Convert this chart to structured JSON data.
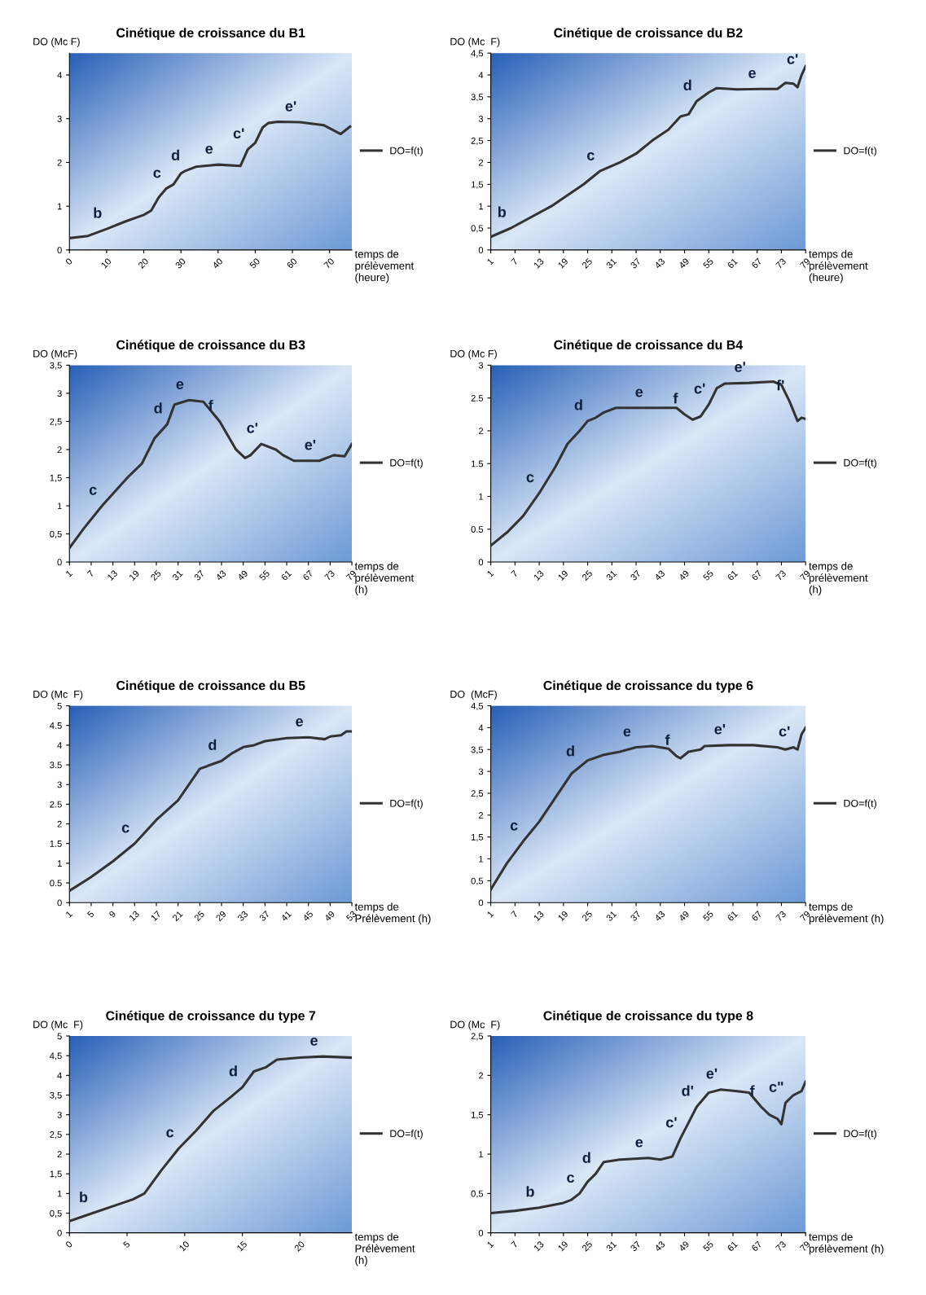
{
  "chart_data": [
    {
      "type": "line",
      "title": "Cinétique de croissance du B1",
      "ylabel": "DO (Mc F)",
      "xlabel": "temps de\nprélèvement\n(heure)",
      "legend": "right",
      "x": [
        0,
        5,
        10,
        15,
        20,
        22,
        24,
        26,
        28,
        30,
        31,
        34,
        40,
        46,
        48,
        50,
        52,
        53.5,
        56,
        62,
        68.5,
        73,
        75.5
      ],
      "series": [
        {
          "name": "DO=f(t)",
          "color": "#333333",
          "values": [
            0.27,
            0.32,
            0.48,
            0.65,
            0.8,
            0.9,
            1.2,
            1.4,
            1.5,
            1.75,
            1.8,
            1.9,
            1.95,
            1.92,
            2.3,
            2.45,
            2.8,
            2.9,
            2.93,
            2.92,
            2.85,
            2.65,
            2.82
          ]
        }
      ],
      "xlim": [
        0,
        76
      ],
      "ylim": [
        0,
        4.5
      ],
      "xticks": [
        0,
        10,
        20,
        30,
        40,
        50,
        60,
        70
      ],
      "yticks": [
        0,
        1,
        2,
        3,
        4
      ],
      "annotations": [
        {
          "text": "b",
          "x": 10,
          "y": 0.48
        },
        {
          "text": "c",
          "x": 26,
          "y": 1.4
        },
        {
          "text": "d",
          "x": 31,
          "y": 1.8
        },
        {
          "text": "e",
          "x": 40,
          "y": 1.95
        },
        {
          "text": "c'",
          "x": 48,
          "y": 2.3
        },
        {
          "text": "e'",
          "x": 62,
          "y": 2.92
        }
      ]
    },
    {
      "type": "line",
      "title": "Cinétique de croissance du B2",
      "ylabel": "DO (Mc  F)",
      "xlabel": "temps de\nprélèvement\n(heure)",
      "legend": "right",
      "x": [
        1,
        6,
        16,
        24,
        28,
        33,
        37,
        41,
        45,
        48,
        50,
        52,
        55,
        57,
        62,
        68,
        72,
        74,
        76,
        77,
        78,
        79
      ],
      "series": [
        {
          "name": "DO=f(t)",
          "color": "#333333",
          "values": [
            0.3,
            0.5,
            1.0,
            1.5,
            1.8,
            2.0,
            2.2,
            2.5,
            2.75,
            3.05,
            3.1,
            3.4,
            3.6,
            3.7,
            3.67,
            3.68,
            3.68,
            3.82,
            3.8,
            3.72,
            4.0,
            4.2
          ]
        }
      ],
      "xlim": [
        1,
        79
      ],
      "ylim": [
        0,
        4.5
      ],
      "xticks": [
        1,
        7,
        13,
        19,
        25,
        31,
        37,
        43,
        49,
        55,
        61,
        67,
        73,
        79
      ],
      "yticks": [
        0,
        {
          "value": 0.5,
          "label": "0,5"
        },
        1,
        {
          "value": 1.5,
          "label": "1,5"
        },
        2,
        {
          "value": 2.5,
          "label": "2,5"
        },
        3,
        {
          "value": 3.5,
          "label": "3,5"
        },
        4,
        {
          "value": 4.5,
          "label": "4,5"
        }
      ],
      "annotations": [
        {
          "text": "b",
          "x": 6,
          "y": 0.5
        },
        {
          "text": "c",
          "x": 28,
          "y": 1.8
        },
        {
          "text": "d",
          "x": 52,
          "y": 3.4
        },
        {
          "text": "e",
          "x": 68,
          "y": 3.68
        },
        {
          "text": "c'",
          "x": 78,
          "y": 4.0
        }
      ]
    },
    {
      "type": "line",
      "title": "Cinétique de croissance du B3",
      "ylabel": "DO (McF)",
      "xlabel": "temps de\nprélèvement\n(h)",
      "legend": "right",
      "x": [
        1,
        5,
        10,
        17,
        21,
        24.5,
        28,
        30,
        34,
        38,
        42.5,
        47,
        49.5,
        51,
        54,
        58,
        60,
        63,
        70,
        74,
        77,
        79
      ],
      "series": [
        {
          "name": "DO=f(t)",
          "color": "#333333",
          "values": [
            0.25,
            0.6,
            1.0,
            1.5,
            1.75,
            2.2,
            2.45,
            2.8,
            2.88,
            2.85,
            2.5,
            2.0,
            1.85,
            1.9,
            2.1,
            2.0,
            1.9,
            1.8,
            1.8,
            1.9,
            1.88,
            2.1
          ]
        }
      ],
      "xlim": [
        1,
        79
      ],
      "ylim": [
        0,
        3.5
      ],
      "xticks": [
        1,
        7,
        13,
        19,
        25,
        31,
        37,
        43,
        49,
        55,
        61,
        67,
        73,
        79
      ],
      "yticks": [
        0,
        {
          "value": 0.5,
          "label": "0,5"
        },
        1,
        {
          "value": 1.5,
          "label": "1,5"
        },
        2,
        {
          "value": 2.5,
          "label": "2,5"
        },
        3,
        {
          "value": 3.5,
          "label": "3,5"
        }
      ],
      "annotations": [
        {
          "text": "c",
          "x": 10,
          "y": 1.0
        },
        {
          "text": "d",
          "x": 28,
          "y": 2.45
        },
        {
          "text": "e",
          "x": 34,
          "y": 2.88
        },
        {
          "text": "f",
          "x": 42.5,
          "y": 2.5
        },
        {
          "text": "c'",
          "x": 54,
          "y": 2.1
        },
        {
          "text": "e'",
          "x": 70,
          "y": 1.8
        }
      ]
    },
    {
      "type": "line",
      "title": "Cinétique de croissance du B4",
      "ylabel": "DO (Mc F)",
      "xlabel": "temps de\nprélèvement\n(h)",
      "legend": "right",
      "x": [
        1,
        5,
        9,
        13,
        17,
        20,
        23,
        25,
        27,
        29,
        32,
        40,
        47,
        49,
        51,
        53,
        55,
        57,
        59,
        65,
        71,
        73,
        75,
        77,
        78,
        79
      ],
      "series": [
        {
          "name": "DO=f(t)",
          "color": "#333333",
          "values": [
            0.25,
            0.45,
            0.7,
            1.05,
            1.45,
            1.8,
            2.0,
            2.15,
            2.2,
            2.28,
            2.35,
            2.35,
            2.35,
            2.25,
            2.17,
            2.22,
            2.4,
            2.65,
            2.72,
            2.73,
            2.75,
            2.7,
            2.45,
            2.15,
            2.2,
            2.18
          ]
        }
      ],
      "xlim": [
        1,
        79
      ],
      "ylim": [
        0,
        3
      ],
      "xticks": [
        1,
        7,
        13,
        19,
        25,
        31,
        37,
        43,
        49,
        55,
        61,
        67,
        73,
        79
      ],
      "yticks": [
        0,
        0.5,
        1,
        1.5,
        2,
        2.5,
        3
      ],
      "annotations": [
        {
          "text": "c",
          "x": 13,
          "y": 1.05
        },
        {
          "text": "d",
          "x": 25,
          "y": 2.15
        },
        {
          "text": "e",
          "x": 40,
          "y": 2.35
        },
        {
          "text": "f",
          "x": 49,
          "y": 2.25
        },
        {
          "text": "c'",
          "x": 55,
          "y": 2.4
        },
        {
          "text": "e'",
          "x": 65,
          "y": 2.73
        },
        {
          "text": "f'",
          "x": 75,
          "y": 2.45
        }
      ]
    },
    {
      "type": "line",
      "title": "Cinétique de croissance du B5",
      "ylabel": "DO (Mc  F)",
      "xlabel": "temps de\nPrélèvement (h)",
      "legend": "right",
      "x": [
        1,
        5,
        9,
        13,
        17,
        21,
        25,
        29,
        31,
        33,
        35,
        37,
        41,
        45,
        48,
        49,
        51,
        52,
        53
      ],
      "series": [
        {
          "name": "DO=f(t)",
          "color": "#333333",
          "values": [
            0.3,
            0.65,
            1.05,
            1.5,
            2.1,
            2.6,
            3.4,
            3.6,
            3.8,
            3.95,
            4.0,
            4.1,
            4.18,
            4.2,
            4.15,
            4.22,
            4.25,
            4.35,
            4.35
          ]
        }
      ],
      "xlim": [
        1,
        53
      ],
      "ylim": [
        0,
        5
      ],
      "xticks": [
        1,
        5,
        9,
        13,
        17,
        21,
        25,
        29,
        33,
        37,
        41,
        45,
        49,
        53
      ],
      "yticks": [
        0,
        0.5,
        1,
        1.5,
        2,
        2.5,
        3,
        3.5,
        4,
        4.5,
        5
      ],
      "annotations": [
        {
          "text": "c",
          "x": 13,
          "y": 1.5
        },
        {
          "text": "d",
          "x": 29,
          "y": 3.6
        },
        {
          "text": "e",
          "x": 45,
          "y": 4.2
        }
      ]
    },
    {
      "type": "line",
      "title": "Cinétique de croissance du type 6",
      "ylabel": "DO  (McF)",
      "xlabel": "temps de\nprélèvement (h)",
      "legend": "right",
      "x": [
        1,
        5,
        9,
        13,
        17,
        21,
        23,
        25,
        29,
        33,
        37,
        41,
        45,
        47,
        48,
        50,
        53,
        54,
        60,
        66,
        72,
        74,
        76,
        77,
        78,
        79
      ],
      "series": [
        {
          "name": "DO=f(t)",
          "color": "#333333",
          "values": [
            0.3,
            0.9,
            1.4,
            1.85,
            2.4,
            2.95,
            3.1,
            3.25,
            3.38,
            3.45,
            3.55,
            3.58,
            3.52,
            3.35,
            3.3,
            3.45,
            3.5,
            3.58,
            3.6,
            3.6,
            3.55,
            3.5,
            3.55,
            3.5,
            3.85,
            4.0
          ]
        }
      ],
      "xlim": [
        1,
        79
      ],
      "ylim": [
        0,
        4.5
      ],
      "xticks": [
        1,
        7,
        13,
        19,
        25,
        31,
        37,
        43,
        49,
        55,
        61,
        67,
        73,
        79
      ],
      "yticks": [
        0,
        {
          "value": 0.5,
          "label": "0,5"
        },
        1,
        {
          "value": 1.5,
          "label": "1,5"
        },
        2,
        {
          "value": 2.5,
          "label": "2,5"
        },
        3,
        {
          "value": 3.5,
          "label": "3,5"
        },
        4,
        {
          "value": 4.5,
          "label": "4,5"
        }
      ],
      "annotations": [
        {
          "text": "c",
          "x": 9,
          "y": 1.4
        },
        {
          "text": "d",
          "x": 23,
          "y": 3.1
        },
        {
          "text": "e",
          "x": 37,
          "y": 3.55
        },
        {
          "text": "f",
          "x": 47,
          "y": 3.35
        },
        {
          "text": "e'",
          "x": 60,
          "y": 3.6
        },
        {
          "text": "c'",
          "x": 76,
          "y": 3.55
        }
      ]
    },
    {
      "type": "line",
      "title": "Cinétique de croissance du type 7",
      "ylabel": "DO (Mc  F)",
      "xlabel": "temps de\nPrélèvement\n(h)",
      "legend": "right",
      "x": [
        0,
        2,
        4,
        5.5,
        6.5,
        8,
        9.5,
        11,
        12.5,
        14,
        15,
        16,
        17,
        18,
        20,
        22,
        24.5
      ],
      "series": [
        {
          "name": "DO=f(t)",
          "color": "#333333",
          "values": [
            0.3,
            0.5,
            0.7,
            0.85,
            1.0,
            1.6,
            2.15,
            2.6,
            3.1,
            3.45,
            3.7,
            4.1,
            4.2,
            4.4,
            4.45,
            4.48,
            4.45
          ]
        }
      ],
      "xlim": [
        0,
        24.5
      ],
      "ylim": [
        0,
        5
      ],
      "xticks": [
        0,
        5,
        10,
        15,
        20
      ],
      "yticks": [
        0,
        {
          "value": 0.5,
          "label": "0,5"
        },
        1,
        {
          "value": 1.5,
          "label": "1,5"
        },
        2,
        {
          "value": 2.5,
          "label": "2,5"
        },
        3,
        {
          "value": 3.5,
          "label": "3,5"
        },
        4,
        {
          "value": 4.5,
          "label": "4,5"
        },
        5
      ],
      "annotations": [
        {
          "text": "b",
          "x": 2,
          "y": 0.5
        },
        {
          "text": "c",
          "x": 9.5,
          "y": 2.15
        },
        {
          "text": "d",
          "x": 15,
          "y": 3.7
        },
        {
          "text": "e",
          "x": 22,
          "y": 4.48
        }
      ]
    },
    {
      "type": "line",
      "title": "Cinétique de croissance du type 8",
      "ylabel": "DO (Mc  F)",
      "xlabel": "temps de\nprélèvement (h)",
      "legend": "right",
      "x": [
        1,
        7,
        13,
        19,
        21,
        23,
        25,
        27,
        29,
        33,
        40,
        43,
        46,
        48,
        50,
        52,
        55,
        58,
        62,
        65,
        68,
        70,
        72,
        73,
        74,
        76,
        78,
        79
      ],
      "series": [
        {
          "name": "DO=f(t)",
          "color": "#333333",
          "values": [
            0.25,
            0.28,
            0.32,
            0.38,
            0.42,
            0.5,
            0.65,
            0.75,
            0.9,
            0.93,
            0.95,
            0.93,
            0.97,
            1.2,
            1.4,
            1.6,
            1.78,
            1.82,
            1.8,
            1.78,
            1.6,
            1.5,
            1.45,
            1.38,
            1.65,
            1.75,
            1.8,
            1.92
          ]
        }
      ],
      "xlim": [
        1,
        79
      ],
      "ylim": [
        0,
        2.5
      ],
      "xticks": [
        1,
        7,
        13,
        19,
        25,
        31,
        37,
        43,
        49,
        55,
        61,
        67,
        73,
        79
      ],
      "yticks": [
        0,
        {
          "value": 0.5,
          "label": "0,5"
        },
        1,
        {
          "value": 1.5,
          "label": "1,5"
        },
        2,
        {
          "value": 2.5,
          "label": "2,5"
        }
      ],
      "annotations": [
        {
          "text": "b",
          "x": 13,
          "y": 0.32
        },
        {
          "text": "c",
          "x": 23,
          "y": 0.5
        },
        {
          "text": "d",
          "x": 27,
          "y": 0.75
        },
        {
          "text": "e",
          "x": 40,
          "y": 0.95
        },
        {
          "text": "c'",
          "x": 48,
          "y": 1.2
        },
        {
          "text": "d'",
          "x": 52,
          "y": 1.6
        },
        {
          "text": "e'",
          "x": 58,
          "y": 1.82
        },
        {
          "text": "f",
          "x": 68,
          "y": 1.6
        },
        {
          "text": "c\"",
          "x": 74,
          "y": 1.65
        }
      ]
    }
  ]
}
